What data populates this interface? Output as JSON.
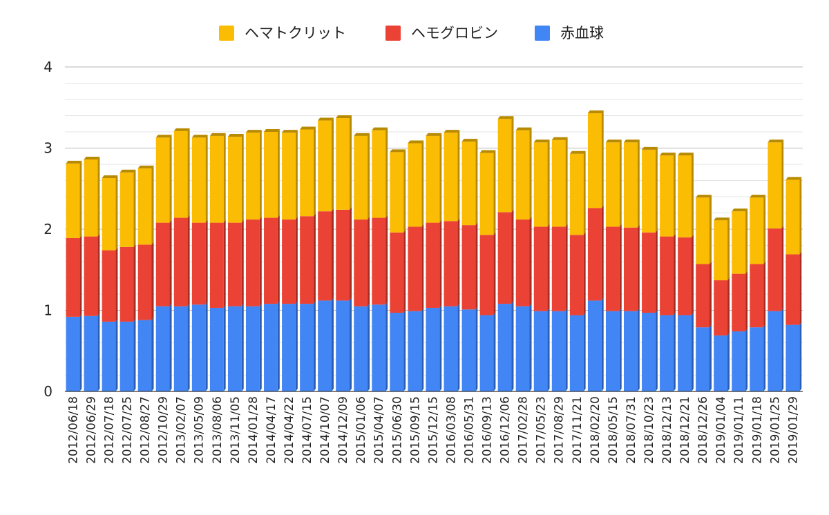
{
  "chart_data": {
    "type": "bar",
    "stacked": true,
    "style": "3d-stacked-column",
    "title": "",
    "xlabel": "",
    "ylabel": "",
    "ylim": [
      0,
      4
    ],
    "yticks": [
      "0",
      "1",
      "2",
      "3",
      "4"
    ],
    "grid": true,
    "legend_position": "top",
    "categories": [
      "2012/06/18",
      "2012/06/29",
      "2012/07/18",
      "2012/07/25",
      "2012/08/27",
      "2012/10/29",
      "2013/02/07",
      "2013/05/09",
      "2013/08/06",
      "2013/11/05",
      "2014/01/28",
      "2014/04/17",
      "2014/04/22",
      "2014/07/15",
      "2014/10/07",
      "2014/12/09",
      "2015/01/06",
      "2015/04/07",
      "2015/06/30",
      "2015/09/15",
      "2015/12/15",
      "2016/03/08",
      "2016/05/31",
      "2016/09/13",
      "2016/12/06",
      "2017/02/28",
      "2017/05/23",
      "2017/08/29",
      "2017/11/21",
      "2018/02/20",
      "2018/05/15",
      "2018/07/31",
      "2018/10/23",
      "2018/12/13",
      "2018/12/21",
      "2018/12/26",
      "2019/01/04",
      "2019/01/11",
      "2019/01/18",
      "2019/01/25",
      "2019/01/29"
    ],
    "series": [
      {
        "name": "赤血球",
        "color": "#4285f4",
        "side_color": "#2a5fb8",
        "values": [
          0.92,
          0.93,
          0.86,
          0.86,
          0.88,
          1.05,
          1.05,
          1.07,
          1.03,
          1.05,
          1.05,
          1.08,
          1.08,
          1.08,
          1.12,
          1.12,
          1.05,
          1.07,
          0.97,
          0.99,
          1.03,
          1.05,
          1.01,
          0.94,
          1.08,
          1.05,
          0.99,
          0.99,
          0.94,
          1.12,
          0.99,
          0.99,
          0.97,
          0.94,
          0.94,
          0.79,
          0.69,
          0.74,
          0.79,
          0.99,
          0.82
        ]
      },
      {
        "name": "ヘモグロビン",
        "color": "#ea4335",
        "side_color": "#a82c22",
        "values": [
          0.97,
          0.98,
          0.88,
          0.92,
          0.93,
          1.03,
          1.09,
          1.01,
          1.05,
          1.03,
          1.07,
          1.06,
          1.04,
          1.08,
          1.1,
          1.12,
          1.07,
          1.07,
          0.99,
          1.04,
          1.05,
          1.05,
          1.04,
          0.99,
          1.13,
          1.07,
          1.04,
          1.04,
          0.99,
          1.14,
          1.04,
          1.03,
          0.99,
          0.97,
          0.96,
          0.78,
          0.68,
          0.71,
          0.78,
          1.02,
          0.87
        ]
      },
      {
        "name": "ヘマトクリット",
        "color": "#fbbc04",
        "side_color": "#b78a00",
        "values": [
          0.92,
          0.95,
          0.89,
          0.92,
          0.94,
          1.05,
          1.07,
          1.05,
          1.07,
          1.06,
          1.07,
          1.06,
          1.07,
          1.07,
          1.12,
          1.13,
          1.03,
          1.08,
          0.99,
          1.03,
          1.07,
          1.09,
          1.03,
          1.01,
          1.15,
          1.1,
          1.04,
          1.07,
          1.0,
          1.17,
          1.04,
          1.05,
          1.02,
          1.0,
          1.01,
          0.82,
          0.74,
          0.77,
          0.82,
          1.06,
          0.92
        ]
      }
    ]
  },
  "legend": [
    {
      "label": "ヘマトクリット",
      "color": "#fbbc04"
    },
    {
      "label": "ヘモグロビン",
      "color": "#ea4335"
    },
    {
      "label": "赤血球",
      "color": "#4285f4"
    }
  ]
}
